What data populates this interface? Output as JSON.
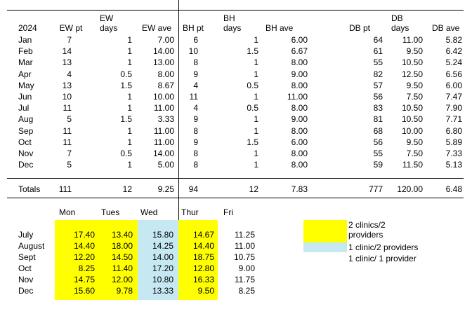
{
  "top_table": {
    "year": "2024",
    "headers": {
      "ew_pt": "EW pt",
      "ew_days": [
        "EW",
        "days"
      ],
      "ew_ave": "EW ave",
      "bh_pt": "BH pt",
      "bh_days": [
        "BH",
        "days"
      ],
      "bh_ave": "BH ave",
      "db_pt": "DB pt",
      "db_days": [
        "DB",
        "days"
      ],
      "db_ave": "DB ave"
    },
    "rows": [
      [
        "Jan",
        "7",
        "1",
        "7.00",
        "6",
        "1",
        "6.00",
        "64",
        "11.00",
        "5.82"
      ],
      [
        "Feb",
        "14",
        "1",
        "14.00",
        "10",
        "1.5",
        "6.67",
        "61",
        "9.50",
        "6.42"
      ],
      [
        "Mar",
        "13",
        "1",
        "13.00",
        "8",
        "1",
        "8.00",
        "55",
        "10.50",
        "5.24"
      ],
      [
        "Apr",
        "4",
        "0.5",
        "8.00",
        "9",
        "1",
        "9.00",
        "82",
        "12.50",
        "6.56"
      ],
      [
        "May",
        "13",
        "1.5",
        "8.67",
        "4",
        "0.5",
        "8.00",
        "57",
        "9.50",
        "6.00"
      ],
      [
        "Jun",
        "10",
        "1",
        "10.00",
        "11",
        "1",
        "11.00",
        "56",
        "7.50",
        "7.47"
      ],
      [
        "Jul",
        "11",
        "1",
        "11.00",
        "4",
        "0.5",
        "8.00",
        "83",
        "10.50",
        "7.90"
      ],
      [
        "Aug",
        "5",
        "1.5",
        "3.33",
        "9",
        "1",
        "9.00",
        "81",
        "10.50",
        "7.71"
      ],
      [
        "Sep",
        "11",
        "1",
        "11.00",
        "8",
        "1",
        "8.00",
        "68",
        "10.00",
        "6.80"
      ],
      [
        "Oct",
        "11",
        "1",
        "11.00",
        "9",
        "1.5",
        "6.00",
        "56",
        "9.50",
        "5.89"
      ],
      [
        "Nov",
        "7",
        "0.5",
        "14.00",
        "8",
        "1",
        "8.00",
        "55",
        "7.50",
        "7.33"
      ],
      [
        "Dec",
        "5",
        "1",
        "5.00",
        "8",
        "1",
        "8.00",
        "59",
        "11.50",
        "5.13"
      ]
    ],
    "totals": [
      "Totals",
      "111",
      "12",
      "9.25",
      "94",
      "12",
      "7.83",
      "777",
      "120.00",
      "6.48"
    ]
  },
  "bottom_table": {
    "days": [
      "Mon",
      "Tues",
      "Wed",
      "Thur",
      "Fri"
    ],
    "rows": [
      [
        "July",
        "17.40",
        "13.40",
        "15.80",
        "14.67",
        "11.25"
      ],
      [
        "August",
        "14.40",
        "18.00",
        "14.25",
        "14.40",
        "11.00"
      ],
      [
        "Sept",
        "12.20",
        "14.50",
        "14.00",
        "18.75",
        "10.75"
      ],
      [
        "Oct",
        "8.25",
        "11.40",
        "17.20",
        "12.80",
        "9.00"
      ],
      [
        "Nov",
        "14.75",
        "12.00",
        "10.80",
        "16.33",
        "11.75"
      ],
      [
        "Dec",
        "15.60",
        "9.78",
        "13.33",
        "9.50",
        "8.25"
      ]
    ]
  },
  "legend": {
    "items": [
      {
        "label_lines": [
          "2 clinics/2",
          "providers"
        ],
        "color": "#ffff00"
      },
      {
        "label_lines": [
          "1 clinic/2 providers"
        ],
        "color": "#c5e8f3"
      },
      {
        "label_lines": [
          "1 clinic/ 1 provider"
        ],
        "color": "#ffffff"
      }
    ]
  }
}
